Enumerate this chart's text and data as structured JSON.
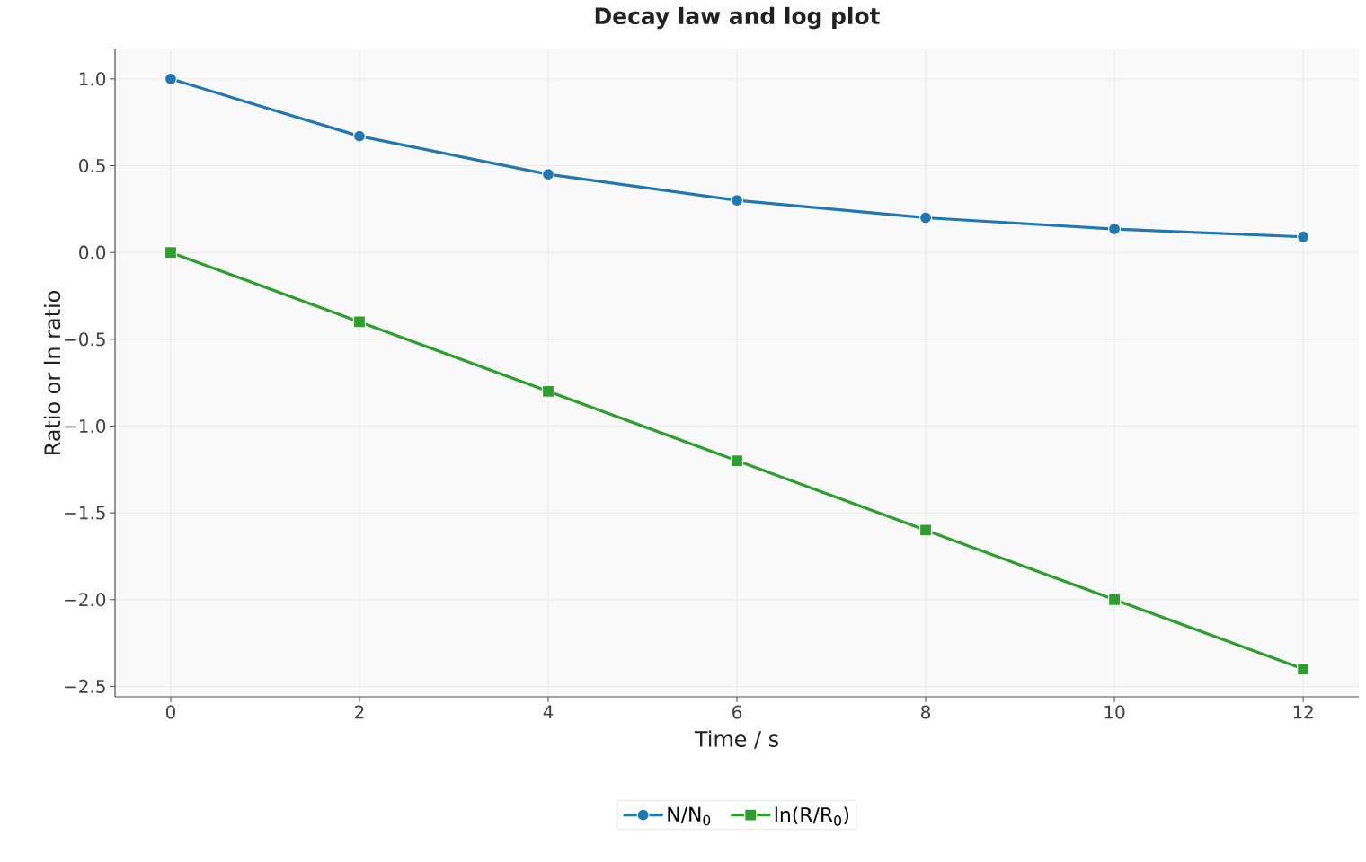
{
  "chart_data": {
    "type": "line",
    "title": "Decay law and log plot",
    "xlabel": "Time / s",
    "ylabel": "Ratio or ln ratio",
    "x": [
      0,
      2,
      4,
      6,
      8,
      10,
      12
    ],
    "series": [
      {
        "name": "N/N$_{0}$",
        "color": "#1f77b4",
        "marker": "circle",
        "values": [
          1.0,
          0.67,
          0.45,
          0.3,
          0.2,
          0.135,
          0.09
        ]
      },
      {
        "name": "ln(R/R$_{0}$)",
        "color": "#2ca02c",
        "marker": "square",
        "values": [
          0.0,
          -0.4,
          -0.8,
          -1.2,
          -1.6,
          -2.0,
          -2.4
        ]
      }
    ],
    "xlim": [
      -0.59,
      12.59
    ],
    "ylim": [
      -2.56,
      1.17
    ],
    "xticks": [
      0,
      2,
      4,
      6,
      8,
      10,
      12
    ],
    "yticks": [
      {
        "value": -2.5,
        "label": "−2.5"
      },
      {
        "value": -2.0,
        "label": "−2.0"
      },
      {
        "value": -1.5,
        "label": "−1.5"
      },
      {
        "value": -1.0,
        "label": "−1.0"
      },
      {
        "value": -0.5,
        "label": "−0.5"
      },
      {
        "value": 0.0,
        "label": "0.0"
      },
      {
        "value": 0.5,
        "label": "0.5"
      },
      {
        "value": 1.0,
        "label": "1.0"
      }
    ],
    "grid": true,
    "legend": "bottom",
    "line_style": "solid"
  }
}
